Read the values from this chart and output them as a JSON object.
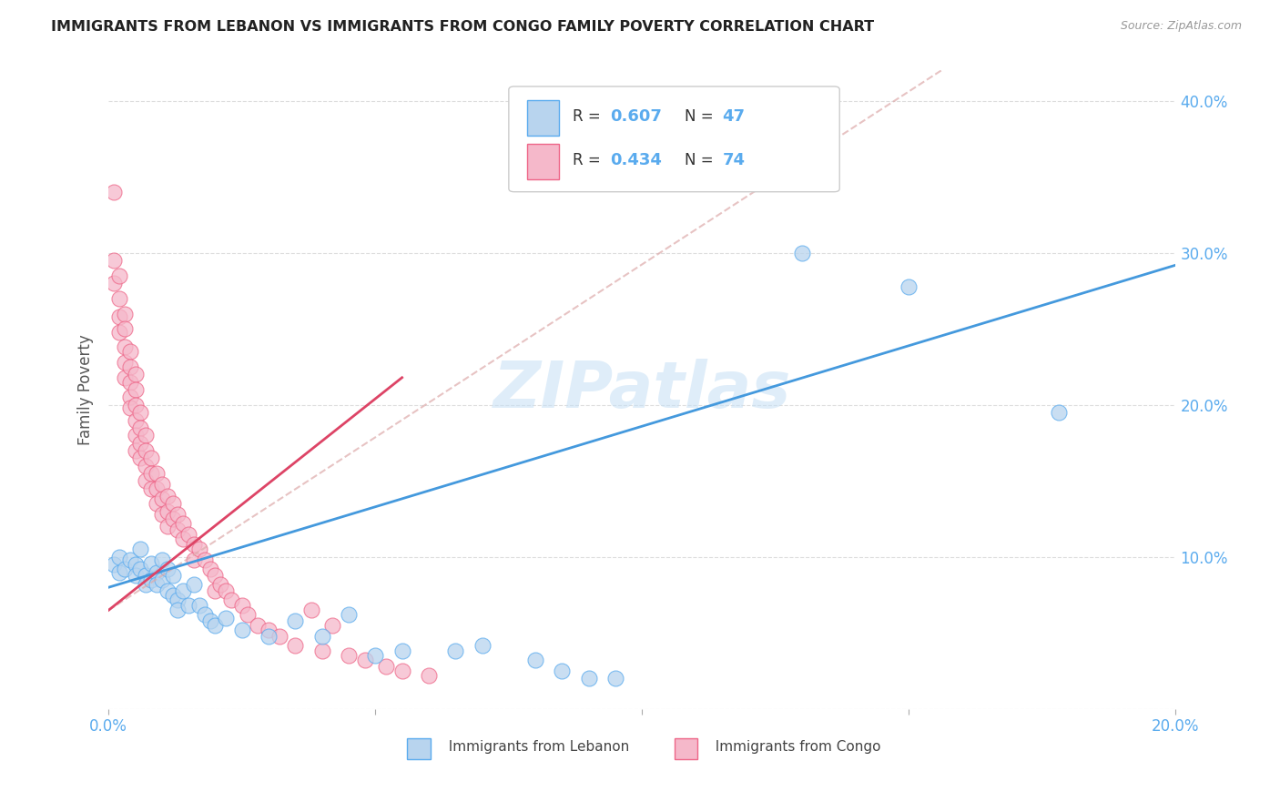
{
  "title": "IMMIGRANTS FROM LEBANON VS IMMIGRANTS FROM CONGO FAMILY POVERTY CORRELATION CHART",
  "source": "Source: ZipAtlas.com",
  "ylabel": "Family Poverty",
  "xlim": [
    0.0,
    0.2
  ],
  "ylim": [
    0.0,
    0.42
  ],
  "x_ticks": [
    0.0,
    0.05,
    0.1,
    0.15,
    0.2
  ],
  "x_tick_labels": [
    "0.0%",
    "",
    "",
    "",
    "20.0%"
  ],
  "y_ticks": [
    0.0,
    0.1,
    0.2,
    0.3,
    0.4
  ],
  "y_tick_right_labels": [
    "",
    "10.0%",
    "20.0%",
    "30.0%",
    "40.0%"
  ],
  "lebanon_R": "0.607",
  "lebanon_N": "47",
  "congo_R": "0.434",
  "congo_N": "74",
  "lebanon_face_color": "#b8d4ee",
  "lebanon_edge_color": "#5aabee",
  "congo_face_color": "#f5b8ca",
  "congo_edge_color": "#ee6688",
  "lebanon_line_color": "#4499dd",
  "congo_line_color": "#dd4466",
  "congo_dash_color": "#ddaaaa",
  "grid_color": "#dddddd",
  "watermark_color": "#c5dff5",
  "tick_label_color": "#5aabee",
  "ylabel_color": "#555555",
  "title_color": "#222222",
  "source_color": "#999999",
  "legend_edge_color": "#cccccc",
  "bottom_legend_color": "#444444",
  "lebanon_scatter": [
    [
      0.001,
      0.095
    ],
    [
      0.002,
      0.09
    ],
    [
      0.002,
      0.1
    ],
    [
      0.003,
      0.092
    ],
    [
      0.004,
      0.098
    ],
    [
      0.005,
      0.095
    ],
    [
      0.005,
      0.088
    ],
    [
      0.006,
      0.105
    ],
    [
      0.006,
      0.092
    ],
    [
      0.007,
      0.088
    ],
    [
      0.007,
      0.082
    ],
    [
      0.008,
      0.096
    ],
    [
      0.008,
      0.085
    ],
    [
      0.009,
      0.09
    ],
    [
      0.009,
      0.082
    ],
    [
      0.01,
      0.098
    ],
    [
      0.01,
      0.085
    ],
    [
      0.011,
      0.092
    ],
    [
      0.011,
      0.078
    ],
    [
      0.012,
      0.088
    ],
    [
      0.012,
      0.075
    ],
    [
      0.013,
      0.072
    ],
    [
      0.013,
      0.065
    ],
    [
      0.014,
      0.078
    ],
    [
      0.015,
      0.068
    ],
    [
      0.016,
      0.082
    ],
    [
      0.017,
      0.068
    ],
    [
      0.018,
      0.062
    ],
    [
      0.019,
      0.058
    ],
    [
      0.02,
      0.055
    ],
    [
      0.022,
      0.06
    ],
    [
      0.025,
      0.052
    ],
    [
      0.03,
      0.048
    ],
    [
      0.035,
      0.058
    ],
    [
      0.04,
      0.048
    ],
    [
      0.045,
      0.062
    ],
    [
      0.05,
      0.035
    ],
    [
      0.055,
      0.038
    ],
    [
      0.065,
      0.038
    ],
    [
      0.07,
      0.042
    ],
    [
      0.08,
      0.032
    ],
    [
      0.085,
      0.025
    ],
    [
      0.09,
      0.02
    ],
    [
      0.095,
      0.02
    ],
    [
      0.13,
      0.3
    ],
    [
      0.15,
      0.278
    ],
    [
      0.178,
      0.195
    ]
  ],
  "congo_scatter": [
    [
      0.001,
      0.34
    ],
    [
      0.001,
      0.295
    ],
    [
      0.001,
      0.28
    ],
    [
      0.002,
      0.285
    ],
    [
      0.002,
      0.27
    ],
    [
      0.002,
      0.258
    ],
    [
      0.002,
      0.248
    ],
    [
      0.003,
      0.26
    ],
    [
      0.003,
      0.25
    ],
    [
      0.003,
      0.238
    ],
    [
      0.003,
      0.228
    ],
    [
      0.003,
      0.218
    ],
    [
      0.004,
      0.235
    ],
    [
      0.004,
      0.225
    ],
    [
      0.004,
      0.215
    ],
    [
      0.004,
      0.205
    ],
    [
      0.004,
      0.198
    ],
    [
      0.005,
      0.22
    ],
    [
      0.005,
      0.21
    ],
    [
      0.005,
      0.2
    ],
    [
      0.005,
      0.19
    ],
    [
      0.005,
      0.18
    ],
    [
      0.005,
      0.17
    ],
    [
      0.006,
      0.195
    ],
    [
      0.006,
      0.185
    ],
    [
      0.006,
      0.175
    ],
    [
      0.006,
      0.165
    ],
    [
      0.007,
      0.18
    ],
    [
      0.007,
      0.17
    ],
    [
      0.007,
      0.16
    ],
    [
      0.007,
      0.15
    ],
    [
      0.008,
      0.165
    ],
    [
      0.008,
      0.155
    ],
    [
      0.008,
      0.145
    ],
    [
      0.009,
      0.155
    ],
    [
      0.009,
      0.145
    ],
    [
      0.009,
      0.135
    ],
    [
      0.01,
      0.148
    ],
    [
      0.01,
      0.138
    ],
    [
      0.01,
      0.128
    ],
    [
      0.011,
      0.14
    ],
    [
      0.011,
      0.13
    ],
    [
      0.011,
      0.12
    ],
    [
      0.012,
      0.135
    ],
    [
      0.012,
      0.125
    ],
    [
      0.013,
      0.128
    ],
    [
      0.013,
      0.118
    ],
    [
      0.014,
      0.122
    ],
    [
      0.014,
      0.112
    ],
    [
      0.015,
      0.115
    ],
    [
      0.016,
      0.108
    ],
    [
      0.016,
      0.098
    ],
    [
      0.017,
      0.105
    ],
    [
      0.018,
      0.098
    ],
    [
      0.019,
      0.092
    ],
    [
      0.02,
      0.088
    ],
    [
      0.02,
      0.078
    ],
    [
      0.021,
      0.082
    ],
    [
      0.022,
      0.078
    ],
    [
      0.023,
      0.072
    ],
    [
      0.025,
      0.068
    ],
    [
      0.026,
      0.062
    ],
    [
      0.028,
      0.055
    ],
    [
      0.03,
      0.052
    ],
    [
      0.032,
      0.048
    ],
    [
      0.035,
      0.042
    ],
    [
      0.038,
      0.065
    ],
    [
      0.04,
      0.038
    ],
    [
      0.042,
      0.055
    ],
    [
      0.045,
      0.035
    ],
    [
      0.048,
      0.032
    ],
    [
      0.052,
      0.028
    ],
    [
      0.055,
      0.025
    ],
    [
      0.06,
      0.022
    ]
  ],
  "lebanon_reg": [
    0.0,
    0.08,
    0.2,
    0.292
  ],
  "congo_reg_solid": [
    0.0,
    0.065,
    0.055,
    0.218
  ],
  "congo_reg_dashed": [
    0.0,
    0.065,
    0.2,
    0.52
  ]
}
